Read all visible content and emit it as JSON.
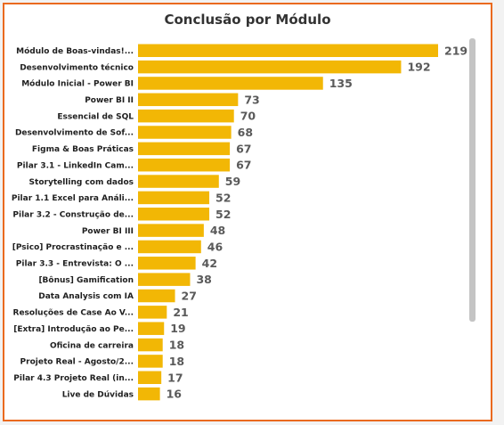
{
  "chart_data": {
    "type": "bar",
    "orientation": "horizontal",
    "title": "Conclusão por Módulo",
    "categories": [
      "Módulo de Boas-vindas!...",
      "Desenvolvimento técnico",
      "Módulo Inicial - Power BI",
      "Power BI II",
      "Essencial de SQL",
      "Desenvolvimento de Sof...",
      "Figma & Boas Práticas",
      "Pilar 3.1 - LinkedIn Cam...",
      "Storytelling com dados",
      "Pilar 1.1 Excel para Análi...",
      "Pilar 3.2 - Construção de...",
      "Power BI III",
      "[Psico] Procrastinação e ...",
      "Pilar 3.3 - Entrevista: O ...",
      "[Bônus] Gamification",
      "Data Analysis com IA",
      "Resoluções de Case Ao V...",
      "[Extra] Introdução ao Pe...",
      "Oficina de carreira",
      "Projeto Real - Agosto/2...",
      "Pilar 4.3 Projeto Real (in...",
      "Live de Dúvidas"
    ],
    "values": [
      219,
      192,
      135,
      73,
      70,
      68,
      67,
      67,
      59,
      52,
      52,
      48,
      46,
      42,
      38,
      27,
      21,
      19,
      18,
      18,
      17,
      16
    ],
    "xlim": [
      0,
      219
    ],
    "bar_color": "#f2b705",
    "data_labels": true,
    "grid": false
  }
}
